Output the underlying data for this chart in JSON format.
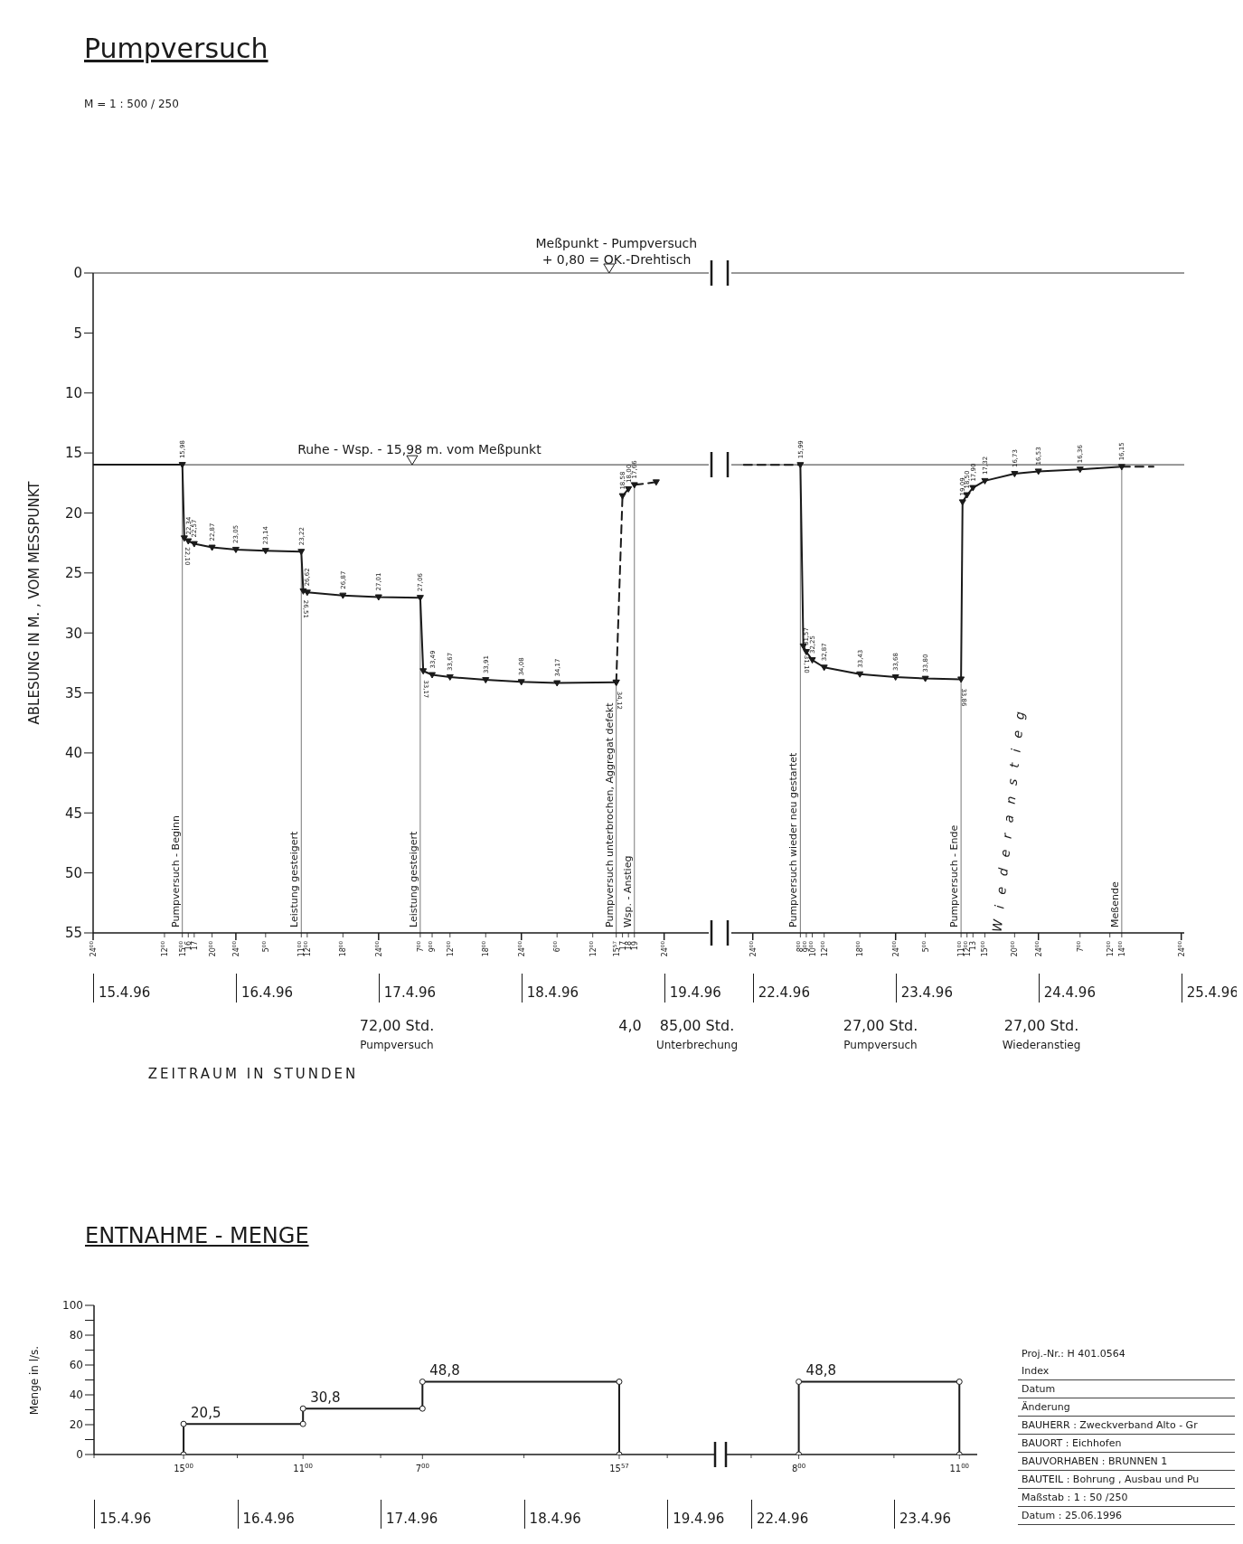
{
  "chart_data": [
    {
      "type": "line",
      "title": "Pumpversuch",
      "subtitle": "M = 1 : 500 / 250",
      "ylabel": "ABLESUNG IN M. , VOM MESSPUNKT",
      "xlim": [
        "1996-04-15T00:00",
        "1996-04-19T07:30"
      ],
      "ylim": [
        55,
        0
      ],
      "yticks": [
        0,
        5,
        10,
        15,
        20,
        25,
        30,
        35,
        40,
        45,
        50,
        55
      ],
      "xticks": [
        {
          "value": "1996-04-15T00:00",
          "label": "24$^{00}$"
        },
        {
          "value": "1996-04-15T12:00",
          "label": "12$^{00}$"
        },
        {
          "value": "1996-04-15T15:00",
          "label": "15$^{00}$"
        },
        {
          "value": "1996-04-15T16:00",
          "label": "16"
        },
        {
          "value": "1996-04-15T17:00",
          "label": "17"
        },
        {
          "value": "1996-04-15T20:00",
          "label": "20$^{00}$"
        },
        {
          "value": "1996-04-16T00:00",
          "label": "24$^{00}$"
        },
        {
          "value": "1996-04-16T05:00",
          "label": "5$^{00}$"
        },
        {
          "value": "1996-04-16T11:00",
          "label": "11$^{00}$"
        },
        {
          "value": "1996-04-16T12:00",
          "label": "12$^{00}$"
        },
        {
          "value": "1996-04-16T18:00",
          "label": "18$^{00}$"
        },
        {
          "value": "1996-04-17T00:00",
          "label": "24$^{00}$"
        },
        {
          "value": "1996-04-17T07:00",
          "label": "7$^{00}$"
        },
        {
          "value": "1996-04-17T09:00",
          "label": "9$^{00}$"
        },
        {
          "value": "1996-04-17T12:00",
          "label": "12$^{00}$"
        },
        {
          "value": "1996-04-17T18:00",
          "label": "18$^{00}$"
        },
        {
          "value": "1996-04-18T00:00",
          "label": "24$^{00}$"
        },
        {
          "value": "1996-04-18T06:00",
          "label": "6$^{00}$"
        },
        {
          "value": "1996-04-18T12:00",
          "label": "12$^{00}$"
        },
        {
          "value": "1996-04-18T15:57",
          "label": "15$^{57}$"
        },
        {
          "value": "1996-04-18T17:00",
          "label": "17"
        },
        {
          "value": "1996-04-18T18:00",
          "label": "18"
        },
        {
          "value": "1996-04-18T19:00",
          "label": "19"
        },
        {
          "value": "1996-04-19T00:00",
          "label": "24$^{00}$"
        }
      ],
      "series": [
        {
          "type": "line",
          "color": "#1a1a1a",
          "line_style": "solid",
          "x": [
            "1996-04-15T00:00",
            "1996-04-15T15:00"
          ],
          "values": [
            15.98,
            15.98
          ]
        },
        {
          "type": "line",
          "color": "#1a1a1a",
          "marker": "triangle",
          "line_style": "solid",
          "x": [
            "1996-04-15T15:00",
            "1996-04-15T15:20",
            "1996-04-15T16:00",
            "1996-04-15T17:00",
            "1996-04-15T20:00",
            "1996-04-16T00:00",
            "1996-04-16T05:00",
            "1996-04-16T11:00",
            "1996-04-16T11:20",
            "1996-04-16T12:00",
            "1996-04-16T18:00",
            "1996-04-17T00:00",
            "1996-04-17T07:00",
            "1996-04-17T07:30",
            "1996-04-17T09:00",
            "1996-04-17T12:00",
            "1996-04-17T18:00",
            "1996-04-18T00:00",
            "1996-04-18T06:00",
            "1996-04-18T15:57"
          ],
          "values": [
            15.98,
            22.1,
            22.34,
            22.57,
            22.87,
            23.05,
            23.14,
            23.22,
            26.51,
            26.62,
            26.87,
            27.01,
            27.06,
            33.17,
            33.49,
            33.67,
            33.91,
            34.08,
            34.17,
            34.12
          ],
          "value_labels": [
            "15,98",
            "22,10",
            "22,34",
            "22,57",
            "22,87",
            "23,05",
            "23,14",
            "23,22",
            "26,51",
            "26,62",
            "26,87",
            "27,01",
            "27,06",
            "33,17",
            "33,49",
            "33,67",
            "33,91",
            "34,08",
            "34,17",
            "34,12"
          ]
        },
        {
          "type": "line",
          "color": "#1a1a1a",
          "marker": "triangle",
          "line_style": "dashed",
          "x": [
            "1996-04-18T15:57",
            "1996-04-18T17:00",
            "1996-04-18T18:00",
            "1996-04-18T19:00",
            "1996-04-18T22:40"
          ],
          "values": [
            34.12,
            18.58,
            18.0,
            17.66,
            17.43
          ],
          "value_labels": [
            null,
            "18,58",
            "18,00",
            "17,66",
            null
          ]
        }
      ],
      "ref_lines": [
        {
          "axis": "y",
          "value": 0,
          "label": "Meßpunkt - Pumpversuch"
        },
        {
          "axis": "y",
          "value": 15.98,
          "label": "Ruhe - Wsp. - 15,98 m. vom Meßpunkt"
        },
        {
          "axis": "x",
          "value": "1996-04-15T15:00",
          "label": "Pumpversuch - Beginn"
        },
        {
          "axis": "x",
          "value": "1996-04-16T11:00",
          "label": "Leistung gesteigert"
        },
        {
          "axis": "x",
          "value": "1996-04-17T07:00",
          "label": "Leistung gesteigert"
        },
        {
          "axis": "x",
          "value": "1996-04-18T15:57",
          "label": "Pumpversuch unterbrochen, Aggregat defekt"
        },
        {
          "axis": "x",
          "value": "1996-04-18T19:00",
          "label": "Wsp. - Anstieg"
        }
      ],
      "annotations": [
        {
          "text": "+ 0,80 = OK.-Drehtisch",
          "x": "1996-04-18T16:00",
          "y": 0
        },
        "15.4.96",
        "16.4.96",
        "17.4.96",
        "18.4.96",
        "19.4.96",
        "72,00 Std.",
        "Pumpversuch",
        "4,0",
        "85,00 Std.",
        "Unterbrechung",
        "ZEITRAUM IN STUNDEN"
      ]
    },
    {
      "type": "line",
      "xlim": [
        "1996-04-21T20:24",
        "1996-04-25T00:30"
      ],
      "ylim": [
        55,
        0
      ],
      "tick_labels": "x",
      "xticks": [
        {
          "value": "1996-04-22T00:00",
          "label": "24$^{00}$"
        },
        {
          "value": "1996-04-22T08:00",
          "label": "8$^{00}$"
        },
        {
          "value": "1996-04-22T09:00",
          "label": "9$^{00}$"
        },
        {
          "value": "1996-04-22T10:00",
          "label": "10$^{00}$"
        },
        {
          "value": "1996-04-22T12:00",
          "label": "12$^{00}$"
        },
        {
          "value": "1996-04-22T18:00",
          "label": "18$^{00}$"
        },
        {
          "value": "1996-04-23T00:00",
          "label": "24$^{00}$"
        },
        {
          "value": "1996-04-23T05:00",
          "label": "5$^{00}$"
        },
        {
          "value": "1996-04-23T11:00",
          "label": "11$^{00}$"
        },
        {
          "value": "1996-04-23T12:00",
          "label": "12$^{00}$"
        },
        {
          "value": "1996-04-23T13:00",
          "label": "13"
        },
        {
          "value": "1996-04-23T15:00",
          "label": "15$^{00}$"
        },
        {
          "value": "1996-04-23T20:00",
          "label": "20$^{00}$"
        },
        {
          "value": "1996-04-24T00:00",
          "label": "24$^{00}$"
        },
        {
          "value": "1996-04-24T07:00",
          "label": "7$^{00}$"
        },
        {
          "value": "1996-04-24T12:00",
          "label": "12$^{00}$"
        },
        {
          "value": "1996-04-24T14:00",
          "label": "14$^{00}$"
        },
        {
          "value": "1996-04-25T00:00",
          "label": "24$^{00}$"
        }
      ],
      "series": [
        {
          "type": "line",
          "color": "#1a1a1a",
          "line_style": "dashed",
          "x": [
            "1996-04-21T22:30",
            "1996-04-22T08:00"
          ],
          "values": [
            15.99,
            15.99
          ]
        },
        {
          "type": "line",
          "color": "#1a1a1a",
          "marker": "triangle",
          "line_style": "solid",
          "x": [
            "1996-04-22T08:00",
            "1996-04-22T08:30",
            "1996-04-22T09:00",
            "1996-04-22T10:00",
            "1996-04-22T12:00",
            "1996-04-22T18:00",
            "1996-04-23T00:00",
            "1996-04-23T05:00",
            "1996-04-23T11:00",
            "1996-04-23T11:15",
            "1996-04-23T12:00",
            "1996-04-23T13:00",
            "1996-04-23T15:00",
            "1996-04-23T20:00",
            "1996-04-24T00:00",
            "1996-04-24T07:00",
            "1996-04-24T14:00"
          ],
          "values": [
            15.99,
            31.1,
            31.57,
            32.25,
            32.87,
            33.43,
            33.68,
            33.8,
            33.86,
            19.09,
            18.5,
            17.9,
            17.32,
            16.73,
            16.53,
            16.36,
            16.15
          ],
          "value_labels": [
            "15,99",
            "31,10",
            "31,57",
            "32,25",
            "32,87",
            "33,43",
            "33,68",
            "33,80",
            "33,86",
            "19,09",
            "18,50",
            "17,90",
            "17,32",
            "16,73",
            "16,53",
            "16,36",
            "16,15"
          ]
        },
        {
          "type": "line",
          "color": "#1a1a1a",
          "marker": "none",
          "line_style": "dashed",
          "x": [
            "1996-04-24T14:00",
            "1996-04-24T19:20"
          ],
          "values": [
            16.15,
            16.15
          ]
        }
      ],
      "ref_lines": [
        {
          "axis": "y",
          "value": 0
        },
        {
          "axis": "y",
          "value": 15.98
        },
        {
          "axis": "x",
          "value": "1996-04-22T08:00",
          "label": "Pumpversuch wieder neu gestartet"
        },
        {
          "axis": "x",
          "value": "1996-04-23T11:00",
          "label": "Pumpversuch - Ende"
        },
        {
          "axis": "x",
          "value": "1996-04-24T14:00",
          "label": "Meßende"
        }
      ],
      "annotations": [
        "22.4.96",
        "23.4.96",
        "24.4.96",
        "25.4.96",
        "Wiederanstieg",
        "27,00 Std.",
        "Pumpversuch",
        "27,00 Std.",
        "Wiederanstieg"
      ]
    },
    {
      "type": "line",
      "title": "ENTNAHME - MENGE",
      "ylabel": "Menge in l/s.",
      "xlim": [
        "1996-04-15T00:00",
        "1996-04-19T08:00"
      ],
      "ylim": [
        0,
        100
      ],
      "yticks": [
        0,
        {
          "value": 10,
          "label": null
        },
        20,
        {
          "value": 30,
          "label": null
        },
        40,
        {
          "value": 50,
          "label": null
        },
        60,
        {
          "value": 70,
          "label": null
        },
        80,
        {
          "value": 90,
          "label": null
        },
        100
      ],
      "xticks": [
        {
          "value": "1996-04-15T00:00",
          "label": null
        },
        {
          "value": "1996-04-15T15:00",
          "label": "15$^{00}$"
        },
        {
          "value": "1996-04-16T00:00",
          "label": null
        },
        {
          "value": "1996-04-16T11:00",
          "label": "11$^{00}$"
        },
        {
          "value": "1996-04-17T00:00",
          "label": null
        },
        {
          "value": "1996-04-17T07:00",
          "label": "7$^{00}$"
        },
        {
          "value": "1996-04-18T00:00",
          "label": null
        },
        {
          "value": "1996-04-18T15:57",
          "label": "15$^{57}$"
        },
        {
          "value": "1996-04-19T00:00",
          "label": null
        }
      ],
      "series": [
        {
          "type": "line",
          "color": "#1a1a1a",
          "marker": "circle",
          "line_style": "solid",
          "x": [
            "1996-04-15T15:00",
            "1996-04-15T15:00",
            "1996-04-16T11:00",
            "1996-04-16T11:00",
            "1996-04-17T07:00",
            "1996-04-17T07:00",
            "1996-04-18T15:57",
            "1996-04-18T15:57"
          ],
          "values": [
            0,
            20.5,
            20.5,
            30.8,
            30.8,
            48.8,
            48.8,
            0
          ],
          "value_labels": [
            null,
            "20,5",
            null,
            "30,8",
            null,
            "48,8",
            null,
            null
          ]
        }
      ],
      "annotations": [
        "15.4.96",
        "16.4.96",
        "17.4.96",
        "18.4.96",
        "19.4.96"
      ]
    },
    {
      "type": "line",
      "xlim": [
        "1996-04-21T19:45",
        "1996-04-23T14:00"
      ],
      "ylim": [
        0,
        100
      ],
      "tick_labels": "x",
      "xticks": [
        {
          "value": "1996-04-22T00:00",
          "label": null
        },
        {
          "value": "1996-04-22T08:00",
          "label": "8$^{00}$"
        },
        {
          "value": "1996-04-23T00:00",
          "label": null
        },
        {
          "value": "1996-04-23T11:00",
          "label": "11$^{00}$"
        }
      ],
      "series": [
        {
          "type": "line",
          "color": "#1a1a1a",
          "marker": "circle",
          "line_style": "solid",
          "x": [
            "1996-04-22T08:00",
            "1996-04-22T08:00",
            "1996-04-23T11:00",
            "1996-04-23T11:00"
          ],
          "values": [
            0,
            48.8,
            48.8,
            0
          ],
          "value_labels": [
            null,
            "48,8",
            null,
            null
          ]
        }
      ],
      "annotations": [
        "22.4.96",
        "23.4.96"
      ]
    },
    {
      "type": "other",
      "annotations": [
        "Proj.-Nr.: H 401.0564",
        "Index",
        "Datum",
        "Änderung",
        "BAUHERR : Zweckverband Alto - Gr",
        "BAUORT : Eichhofen",
        "BAUVORHABEN : BRUNNEN 1",
        "BAUTEIL : Bohrung , Ausbau und Pu",
        "Maßstab : 1 : 50 /250",
        "Datum : 25.06.1996"
      ]
    }
  ]
}
